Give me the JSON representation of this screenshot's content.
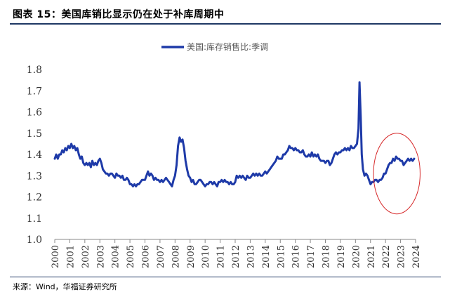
{
  "figure": {
    "title": "图表 15：美国库销比显示仍在处于补库周期中",
    "source": "来源：Wind，华福证券研究所"
  },
  "chart_data": {
    "type": "line",
    "title": "",
    "xlabel": "",
    "ylabel": "",
    "ylim": [
      1.0,
      1.8
    ],
    "yticks": [
      "1.0",
      "1.1",
      "1.2",
      "1.3",
      "1.4",
      "1.5",
      "1.6",
      "1.7",
      "1.8"
    ],
    "xticks": [
      "2000",
      "2001",
      "2002",
      "2003",
      "2004",
      "2005",
      "2006",
      "2007",
      "2008",
      "2009",
      "2010",
      "2011",
      "2012",
      "2013",
      "2014",
      "2015",
      "2016",
      "2017",
      "2018",
      "2019",
      "2020",
      "2021",
      "2022",
      "2023",
      "2024"
    ],
    "xlim": [
      2000,
      2024
    ],
    "grid": false,
    "legend": "top-center",
    "line_color": "#1e3aa8",
    "annotation_color": "#d62728",
    "annotation": {
      "shape": "ellipse",
      "x_range": [
        2021.2,
        2024.3
      ],
      "y_range": [
        1.12,
        1.5
      ]
    },
    "series": [
      {
        "name": "美国:库存销售比:季调",
        "points": [
          [
            2000.0,
            1.38
          ],
          [
            2000.1,
            1.4
          ],
          [
            2000.2,
            1.38
          ],
          [
            2000.3,
            1.4
          ],
          [
            2000.4,
            1.4
          ],
          [
            2000.5,
            1.42
          ],
          [
            2000.6,
            1.41
          ],
          [
            2000.7,
            1.43
          ],
          [
            2000.8,
            1.42
          ],
          [
            2000.9,
            1.44
          ],
          [
            2001.0,
            1.43
          ],
          [
            2001.1,
            1.45
          ],
          [
            2001.2,
            1.43
          ],
          [
            2001.3,
            1.44
          ],
          [
            2001.4,
            1.42
          ],
          [
            2001.5,
            1.43
          ],
          [
            2001.6,
            1.4
          ],
          [
            2001.7,
            1.38
          ],
          [
            2001.8,
            1.39
          ],
          [
            2001.9,
            1.36
          ],
          [
            2002.0,
            1.35
          ],
          [
            2002.1,
            1.36
          ],
          [
            2002.2,
            1.35
          ],
          [
            2002.3,
            1.36
          ],
          [
            2002.4,
            1.34
          ],
          [
            2002.5,
            1.37
          ],
          [
            2002.6,
            1.35
          ],
          [
            2002.7,
            1.36
          ],
          [
            2002.8,
            1.35
          ],
          [
            2002.9,
            1.37
          ],
          [
            2003.0,
            1.38
          ],
          [
            2003.1,
            1.36
          ],
          [
            2003.2,
            1.33
          ],
          [
            2003.3,
            1.32
          ],
          [
            2003.4,
            1.31
          ],
          [
            2003.5,
            1.31
          ],
          [
            2003.6,
            1.3
          ],
          [
            2003.7,
            1.31
          ],
          [
            2003.8,
            1.31
          ],
          [
            2003.9,
            1.3
          ],
          [
            2004.0,
            1.29
          ],
          [
            2004.1,
            1.31
          ],
          [
            2004.2,
            1.3
          ],
          [
            2004.3,
            1.3
          ],
          [
            2004.4,
            1.29
          ],
          [
            2004.5,
            1.3
          ],
          [
            2004.6,
            1.28
          ],
          [
            2004.7,
            1.28
          ],
          [
            2004.8,
            1.29
          ],
          [
            2004.9,
            1.28
          ],
          [
            2005.0,
            1.26
          ],
          [
            2005.1,
            1.26
          ],
          [
            2005.2,
            1.25
          ],
          [
            2005.3,
            1.26
          ],
          [
            2005.4,
            1.25
          ],
          [
            2005.5,
            1.26
          ],
          [
            2005.6,
            1.26
          ],
          [
            2005.7,
            1.27
          ],
          [
            2005.8,
            1.28
          ],
          [
            2005.9,
            1.28
          ],
          [
            2006.0,
            1.28
          ],
          [
            2006.1,
            1.3
          ],
          [
            2006.2,
            1.32
          ],
          [
            2006.3,
            1.3
          ],
          [
            2006.4,
            1.31
          ],
          [
            2006.5,
            1.3
          ],
          [
            2006.6,
            1.28
          ],
          [
            2006.7,
            1.29
          ],
          [
            2006.8,
            1.28
          ],
          [
            2006.9,
            1.28
          ],
          [
            2007.0,
            1.27
          ],
          [
            2007.1,
            1.28
          ],
          [
            2007.2,
            1.27
          ],
          [
            2007.3,
            1.28
          ],
          [
            2007.4,
            1.29
          ],
          [
            2007.5,
            1.28
          ],
          [
            2007.6,
            1.27
          ],
          [
            2007.7,
            1.26
          ],
          [
            2007.8,
            1.25
          ],
          [
            2007.9,
            1.28
          ],
          [
            2008.0,
            1.3
          ],
          [
            2008.1,
            1.35
          ],
          [
            2008.2,
            1.44
          ],
          [
            2008.3,
            1.48
          ],
          [
            2008.4,
            1.46
          ],
          [
            2008.5,
            1.47
          ],
          [
            2008.6,
            1.43
          ],
          [
            2008.7,
            1.37
          ],
          [
            2008.8,
            1.33
          ],
          [
            2008.9,
            1.3
          ],
          [
            2009.0,
            1.29
          ],
          [
            2009.1,
            1.27
          ],
          [
            2009.2,
            1.28
          ],
          [
            2009.3,
            1.26
          ],
          [
            2009.4,
            1.26
          ],
          [
            2009.5,
            1.27
          ],
          [
            2009.6,
            1.28
          ],
          [
            2009.7,
            1.28
          ],
          [
            2009.8,
            1.27
          ],
          [
            2009.9,
            1.26
          ],
          [
            2010.0,
            1.25
          ],
          [
            2010.1,
            1.26
          ],
          [
            2010.2,
            1.26
          ],
          [
            2010.3,
            1.27
          ],
          [
            2010.4,
            1.27
          ],
          [
            2010.5,
            1.26
          ],
          [
            2010.6,
            1.27
          ],
          [
            2010.7,
            1.26
          ],
          [
            2010.8,
            1.25
          ],
          [
            2010.9,
            1.27
          ],
          [
            2011.0,
            1.27
          ],
          [
            2011.1,
            1.28
          ],
          [
            2011.2,
            1.27
          ],
          [
            2011.3,
            1.28
          ],
          [
            2011.4,
            1.27
          ],
          [
            2011.5,
            1.27
          ],
          [
            2011.6,
            1.26
          ],
          [
            2011.7,
            1.27
          ],
          [
            2011.8,
            1.26
          ],
          [
            2011.9,
            1.26
          ],
          [
            2012.0,
            1.27
          ],
          [
            2012.1,
            1.3
          ],
          [
            2012.2,
            1.29
          ],
          [
            2012.3,
            1.3
          ],
          [
            2012.4,
            1.29
          ],
          [
            2012.5,
            1.3
          ],
          [
            2012.6,
            1.29
          ],
          [
            2012.7,
            1.28
          ],
          [
            2012.8,
            1.3
          ],
          [
            2012.9,
            1.29
          ],
          [
            2013.0,
            1.29
          ],
          [
            2013.1,
            1.3
          ],
          [
            2013.2,
            1.31
          ],
          [
            2013.3,
            1.3
          ],
          [
            2013.4,
            1.31
          ],
          [
            2013.5,
            1.3
          ],
          [
            2013.6,
            1.31
          ],
          [
            2013.7,
            1.3
          ],
          [
            2013.8,
            1.3
          ],
          [
            2013.9,
            1.31
          ],
          [
            2014.0,
            1.32
          ],
          [
            2014.1,
            1.31
          ],
          [
            2014.2,
            1.32
          ],
          [
            2014.3,
            1.33
          ],
          [
            2014.4,
            1.34
          ],
          [
            2014.5,
            1.35
          ],
          [
            2014.6,
            1.36
          ],
          [
            2014.7,
            1.37
          ],
          [
            2014.8,
            1.39
          ],
          [
            2014.9,
            1.38
          ],
          [
            2015.0,
            1.38
          ],
          [
            2015.1,
            1.38
          ],
          [
            2015.2,
            1.4
          ],
          [
            2015.3,
            1.4
          ],
          [
            2015.4,
            1.41
          ],
          [
            2015.5,
            1.42
          ],
          [
            2015.6,
            1.44
          ],
          [
            2015.7,
            1.43
          ],
          [
            2015.8,
            1.43
          ],
          [
            2015.9,
            1.42
          ],
          [
            2016.0,
            1.43
          ],
          [
            2016.1,
            1.42
          ],
          [
            2016.2,
            1.42
          ],
          [
            2016.3,
            1.41
          ],
          [
            2016.4,
            1.41
          ],
          [
            2016.5,
            1.42
          ],
          [
            2016.6,
            1.4
          ],
          [
            2016.7,
            1.39
          ],
          [
            2016.8,
            1.39
          ],
          [
            2016.9,
            1.4
          ],
          [
            2017.0,
            1.39
          ],
          [
            2017.1,
            1.41
          ],
          [
            2017.2,
            1.39
          ],
          [
            2017.3,
            1.4
          ],
          [
            2017.4,
            1.39
          ],
          [
            2017.5,
            1.4
          ],
          [
            2017.6,
            1.38
          ],
          [
            2017.7,
            1.37
          ],
          [
            2017.8,
            1.37
          ],
          [
            2017.9,
            1.37
          ],
          [
            2018.0,
            1.36
          ],
          [
            2018.1,
            1.37
          ],
          [
            2018.2,
            1.37
          ],
          [
            2018.3,
            1.35
          ],
          [
            2018.4,
            1.36
          ],
          [
            2018.5,
            1.38
          ],
          [
            2018.6,
            1.4
          ],
          [
            2018.7,
            1.41
          ],
          [
            2018.8,
            1.4
          ],
          [
            2018.9,
            1.41
          ],
          [
            2019.0,
            1.41
          ],
          [
            2019.1,
            1.42
          ],
          [
            2019.2,
            1.42
          ],
          [
            2019.3,
            1.43
          ],
          [
            2019.4,
            1.42
          ],
          [
            2019.5,
            1.43
          ],
          [
            2019.6,
            1.42
          ],
          [
            2019.7,
            1.44
          ],
          [
            2019.8,
            1.43
          ],
          [
            2019.9,
            1.43
          ],
          [
            2020.1,
            1.45
          ],
          [
            2020.2,
            1.52
          ],
          [
            2020.27,
            1.74
          ],
          [
            2020.35,
            1.58
          ],
          [
            2020.42,
            1.4
          ],
          [
            2020.5,
            1.33
          ],
          [
            2020.6,
            1.3
          ],
          [
            2020.7,
            1.31
          ],
          [
            2020.8,
            1.3
          ],
          [
            2020.9,
            1.28
          ],
          [
            2021.0,
            1.26
          ],
          [
            2021.1,
            1.27
          ],
          [
            2021.2,
            1.27
          ],
          [
            2021.3,
            1.28
          ],
          [
            2021.4,
            1.28
          ],
          [
            2021.5,
            1.27
          ],
          [
            2021.6,
            1.28
          ],
          [
            2021.7,
            1.28
          ],
          [
            2021.8,
            1.29
          ],
          [
            2021.9,
            1.31
          ],
          [
            2022.0,
            1.31
          ],
          [
            2022.1,
            1.33
          ],
          [
            2022.2,
            1.35
          ],
          [
            2022.3,
            1.36
          ],
          [
            2022.4,
            1.36
          ],
          [
            2022.5,
            1.38
          ],
          [
            2022.6,
            1.37
          ],
          [
            2022.7,
            1.39
          ],
          [
            2022.8,
            1.38
          ],
          [
            2022.9,
            1.38
          ],
          [
            2023.0,
            1.37
          ],
          [
            2023.1,
            1.37
          ],
          [
            2023.2,
            1.35
          ],
          [
            2023.3,
            1.36
          ],
          [
            2023.4,
            1.37
          ],
          [
            2023.5,
            1.38
          ],
          [
            2023.6,
            1.37
          ],
          [
            2023.7,
            1.38
          ],
          [
            2023.8,
            1.37
          ],
          [
            2023.9,
            1.38
          ]
        ]
      }
    ]
  }
}
